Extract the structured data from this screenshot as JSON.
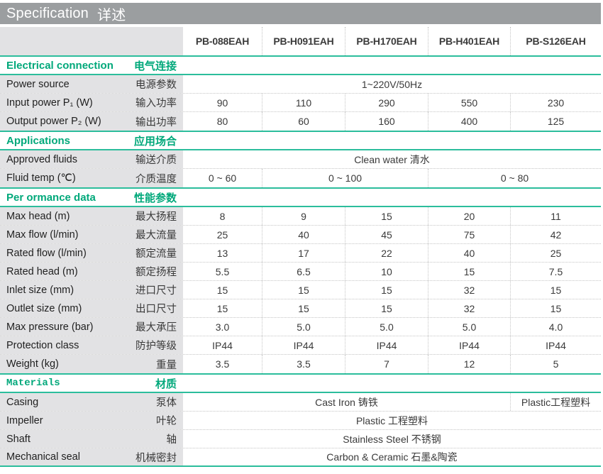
{
  "title": {
    "en": "Specification",
    "zh": "详述"
  },
  "colors": {
    "accent_green": "#00a87a",
    "green_line": "#2cbd9c",
    "title_bar": "#9b9ea0",
    "label_bg": "#e2e2e4"
  },
  "models": [
    "PB-088EAH",
    "PB-H091EAH",
    "PB-H170EAH",
    "PB-H401EAH",
    "PB-S126EAH"
  ],
  "sections": [
    {
      "header": {
        "en": "Electrical connection",
        "zh": "电气连接"
      },
      "rows": [
        {
          "en": "Power source",
          "zh": "电源参数",
          "cells": [
            "1~220V/50Hz"
          ]
        },
        {
          "en": "Input power P₁ (W)",
          "zh": "输入功率",
          "cells": [
            "90",
            "110",
            "290",
            "550",
            "230"
          ]
        },
        {
          "en": "Output power P₂ (W)",
          "zh": "输出功率",
          "cells": [
            "80",
            "60",
            "160",
            "400",
            "125"
          ]
        }
      ]
    },
    {
      "header": {
        "en": "Applications",
        "zh": "应用场合"
      },
      "rows": [
        {
          "en": "Approved fluids",
          "zh": "输送介质",
          "cells": [
            "Clean water 清水"
          ]
        },
        {
          "en": "Fluid temp (℃)",
          "zh": "介质温度",
          "cells": [
            "0 ~ 60",
            "0 ~ 100",
            "0 ~ 80"
          ]
        }
      ]
    },
    {
      "header": {
        "en": "Per ormance data",
        "zh": "性能参数"
      },
      "rows": [
        {
          "en": "Max head (m)",
          "zh": "最大扬程",
          "cells": [
            "8",
            "9",
            "15",
            "20",
            "11"
          ]
        },
        {
          "en": "Max flow (l/min)",
          "zh": "最大流量",
          "cells": [
            "25",
            "40",
            "45",
            "75",
            "42"
          ]
        },
        {
          "en": "Rated flow (l/min)",
          "zh": "额定流量",
          "cells": [
            "13",
            "17",
            "22",
            "40",
            "25"
          ]
        },
        {
          "en": "Rated head (m)",
          "zh": "额定扬程",
          "cells": [
            "5.5",
            "6.5",
            "10",
            "15",
            "7.5"
          ]
        },
        {
          "en": "Inlet size (mm)",
          "zh": "进口尺寸",
          "cells": [
            "15",
            "15",
            "15",
            "32",
            "15"
          ]
        },
        {
          "en": "Outlet size (mm)",
          "zh": "出口尺寸",
          "cells": [
            "15",
            "15",
            "15",
            "32",
            "15"
          ]
        },
        {
          "en": "Max pressure (bar)",
          "zh": "最大承压",
          "cells": [
            "3.0",
            "5.0",
            "5.0",
            "5.0",
            "4.0"
          ]
        },
        {
          "en": "Protection class",
          "zh": "防护等级",
          "cells": [
            "IP44",
            "IP44",
            "IP44",
            "IP44",
            "IP44"
          ]
        },
        {
          "en": "Weight  (kg)",
          "zh": "重量",
          "cells": [
            "3.5",
            "3.5",
            "7",
            "12",
            "5"
          ]
        }
      ]
    },
    {
      "header": {
        "en": "Materials",
        "zh": "材质"
      },
      "rows": [
        {
          "en": "Casing",
          "zh": "泵体",
          "cells": [
            "Cast Iron 铸铁",
            "Plastic工程塑料"
          ]
        },
        {
          "en": "Impeller",
          "zh": "叶轮",
          "cells": [
            "Plastic  工程塑料"
          ]
        },
        {
          "en": "Shaft",
          "zh": "轴",
          "cells": [
            "Stainless Steel 不锈钢"
          ]
        },
        {
          "en": "Mechanical seal",
          "zh": "机械密封",
          "cells": [
            "Carbon & Ceramic 石墨&陶瓷"
          ]
        }
      ]
    }
  ]
}
